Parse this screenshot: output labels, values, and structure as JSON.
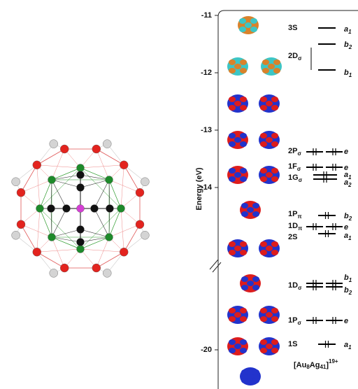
{
  "axis": {
    "label": "Energy (eV)",
    "ticks": [
      "-11",
      "-12",
      "-13",
      "-14",
      "-20"
    ]
  },
  "levels": [
    {
      "name": "3S",
      "symmetry": [
        {
          "name": "a",
          "sub": "1"
        }
      ]
    },
    {
      "name": "2D",
      "sub": "σ",
      "symmetry": [
        {
          "name": "b",
          "sub": "2"
        },
        {
          "name": "b",
          "sub": "1"
        }
      ]
    },
    {
      "name": "2P",
      "sub": "σ",
      "symmetry": [
        {
          "name": "e"
        }
      ]
    },
    {
      "name": "1F",
      "sub": "σ",
      "symmetry": [
        {
          "name": "e"
        }
      ]
    },
    {
      "name": "1G",
      "sub": "σ",
      "symmetry": [
        {
          "name": "a",
          "sub": "1"
        },
        {
          "name": "a",
          "sub": "2"
        }
      ]
    },
    {
      "name": "1P",
      "sub": "π",
      "symmetry": [
        {
          "name": "b",
          "sub": "2"
        }
      ]
    },
    {
      "name": "1D",
      "sub": "π",
      "symmetry": [
        {
          "name": "e"
        }
      ]
    },
    {
      "name": "2S",
      "symmetry": [
        {
          "name": "a",
          "sub": "1"
        }
      ]
    },
    {
      "name": "1D",
      "sub": "σ",
      "symmetry": [
        {
          "name": "b",
          "sub": "1"
        },
        {
          "name": "b",
          "sub": "2"
        }
      ]
    },
    {
      "name": "1P",
      "sub": "σ",
      "symmetry": [
        {
          "name": "e"
        }
      ]
    },
    {
      "name": "1S",
      "symmetry": [
        {
          "name": "a",
          "sub": "1"
        }
      ]
    }
  ],
  "formula": {
    "parts": [
      "[Au",
      "8",
      "Ag",
      "41",
      "]",
      "19+"
    ]
  }
}
